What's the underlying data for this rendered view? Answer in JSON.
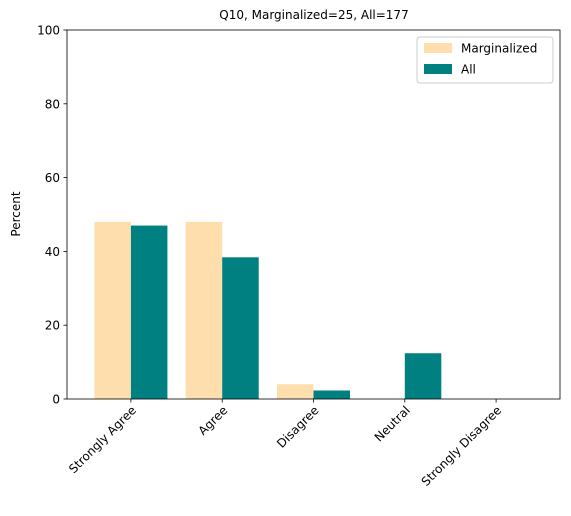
{
  "chart_data": {
    "type": "bar",
    "title": "Q10, Marginalized=25, All=177",
    "xlabel": "",
    "ylabel": "Percent",
    "ylim": [
      0,
      100
    ],
    "yticks": [
      0,
      20,
      40,
      60,
      80,
      100
    ],
    "categories": [
      "Strongly Agree",
      "Agree",
      "Disagree",
      "Neutral",
      "Strongly Disagree"
    ],
    "series": [
      {
        "name": "Marginalized",
        "color": "#ffdead",
        "values": [
          48.0,
          48.0,
          4.0,
          0.0,
          0.0
        ]
      },
      {
        "name": "All",
        "color": "#008080",
        "values": [
          47.0,
          38.4,
          2.3,
          12.4,
          0.0
        ]
      }
    ],
    "grid": false,
    "legend": "top-right"
  }
}
